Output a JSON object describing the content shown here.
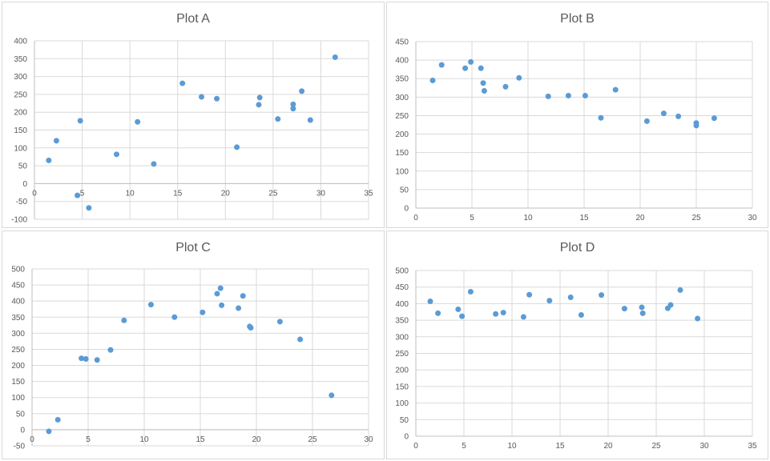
{
  "colors": {
    "point": "#5b9bd5",
    "grid": "#d9d9d9",
    "axis": "#bfbfbf",
    "text": "#595959"
  },
  "chart_data": [
    {
      "type": "scatter",
      "title": "Plot A",
      "xlim": [
        0,
        35
      ],
      "ylim": [
        -100,
        400
      ],
      "xticks": [
        0,
        5,
        10,
        15,
        20,
        25,
        30,
        35
      ],
      "yticks": [
        -100,
        -50,
        0,
        50,
        100,
        150,
        200,
        250,
        300,
        350,
        400
      ],
      "grid": true,
      "points": [
        [
          1.5,
          65
        ],
        [
          2.3,
          120
        ],
        [
          4.5,
          -33
        ],
        [
          4.8,
          176
        ],
        [
          5.7,
          -68
        ],
        [
          8.6,
          82
        ],
        [
          10.8,
          173
        ],
        [
          12.5,
          55
        ],
        [
          15.5,
          281
        ],
        [
          17.5,
          243
        ],
        [
          19.1,
          238
        ],
        [
          21.2,
          102
        ],
        [
          23.5,
          221
        ],
        [
          23.6,
          241
        ],
        [
          25.5,
          181
        ],
        [
          27.1,
          222
        ],
        [
          27.1,
          210
        ],
        [
          28.0,
          259
        ],
        [
          28.9,
          178
        ],
        [
          31.5,
          354
        ]
      ]
    },
    {
      "type": "scatter",
      "title": "Plot B",
      "xlim": [
        0,
        30
      ],
      "ylim": [
        0,
        450
      ],
      "xticks": [
        0,
        5,
        10,
        15,
        20,
        25,
        30
      ],
      "yticks": [
        0,
        50,
        100,
        150,
        200,
        250,
        300,
        350,
        400,
        450
      ],
      "grid": true,
      "points": [
        [
          1.5,
          345
        ],
        [
          2.3,
          387
        ],
        [
          4.4,
          378
        ],
        [
          4.9,
          395
        ],
        [
          5.8,
          378
        ],
        [
          6.0,
          338
        ],
        [
          6.1,
          317
        ],
        [
          8.0,
          328
        ],
        [
          9.2,
          352
        ],
        [
          11.8,
          302
        ],
        [
          13.6,
          304
        ],
        [
          15.1,
          304
        ],
        [
          16.5,
          244
        ],
        [
          17.8,
          320
        ],
        [
          20.6,
          235
        ],
        [
          22.1,
          256
        ],
        [
          23.4,
          248
        ],
        [
          25.0,
          230
        ],
        [
          25.0,
          223
        ],
        [
          26.6,
          243
        ]
      ]
    },
    {
      "type": "scatter",
      "title": "Plot C",
      "xlim": [
        0,
        30
      ],
      "ylim": [
        -50,
        500
      ],
      "xticks": [
        0,
        5,
        10,
        15,
        20,
        25,
        30
      ],
      "yticks": [
        -50,
        0,
        50,
        100,
        150,
        200,
        250,
        300,
        350,
        400,
        450,
        500
      ],
      "grid": true,
      "points": [
        [
          1.5,
          -5
        ],
        [
          2.3,
          31
        ],
        [
          4.4,
          222
        ],
        [
          4.8,
          220
        ],
        [
          5.8,
          217
        ],
        [
          7.0,
          248
        ],
        [
          8.2,
          340
        ],
        [
          10.6,
          389
        ],
        [
          12.7,
          350
        ],
        [
          15.2,
          365
        ],
        [
          16.5,
          423
        ],
        [
          16.8,
          440
        ],
        [
          16.9,
          387
        ],
        [
          18.4,
          378
        ],
        [
          18.8,
          416
        ],
        [
          19.4,
          321
        ],
        [
          19.5,
          317
        ],
        [
          22.1,
          336
        ],
        [
          23.9,
          281
        ],
        [
          26.7,
          107
        ]
      ]
    },
    {
      "type": "scatter",
      "title": "Plot D",
      "xlim": [
        0,
        35
      ],
      "ylim": [
        0,
        500
      ],
      "xticks": [
        0,
        5,
        10,
        15,
        20,
        25,
        30,
        35
      ],
      "yticks": [
        0,
        50,
        100,
        150,
        200,
        250,
        300,
        350,
        400,
        450,
        500
      ],
      "grid": true,
      "points": [
        [
          1.5,
          407
        ],
        [
          2.3,
          371
        ],
        [
          4.4,
          383
        ],
        [
          4.8,
          362
        ],
        [
          5.7,
          436
        ],
        [
          8.3,
          369
        ],
        [
          9.1,
          373
        ],
        [
          11.2,
          360
        ],
        [
          11.8,
          427
        ],
        [
          13.9,
          409
        ],
        [
          16.1,
          419
        ],
        [
          17.2,
          366
        ],
        [
          19.3,
          426
        ],
        [
          21.7,
          385
        ],
        [
          23.5,
          389
        ],
        [
          23.6,
          371
        ],
        [
          26.2,
          386
        ],
        [
          26.5,
          396
        ],
        [
          27.5,
          441
        ],
        [
          29.3,
          355
        ]
      ]
    }
  ]
}
